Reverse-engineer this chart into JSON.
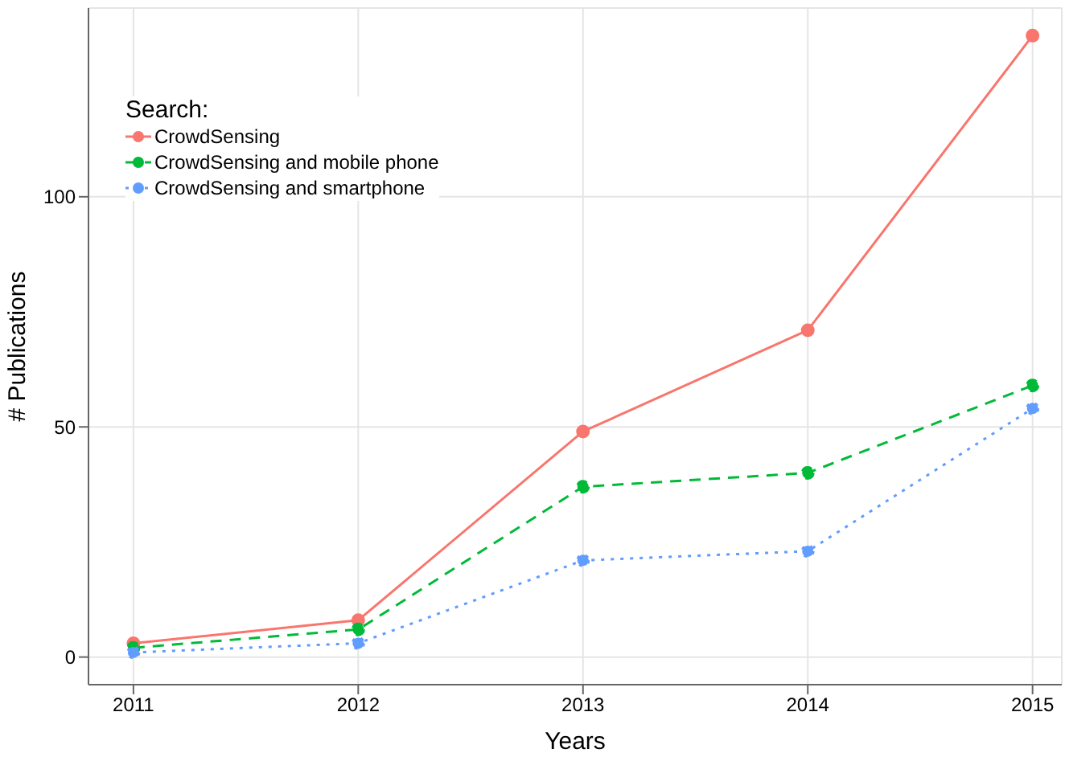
{
  "chart_data": {
    "type": "line",
    "xlabel": "Years",
    "ylabel": "# Publications",
    "legend_title": "Search:",
    "x": [
      2011,
      2012,
      2013,
      2014,
      2015
    ],
    "series": [
      {
        "name": "CrowdSensing",
        "color": "#f8766d",
        "line_style": "solid",
        "values": [
          3,
          8,
          49,
          71,
          135
        ]
      },
      {
        "name": "CrowdSensing and mobile phone",
        "color": "#00ba38",
        "line_style": "dashed",
        "values": [
          2,
          6,
          37,
          40,
          59
        ]
      },
      {
        "name": "CrowdSensing and smartphone",
        "color": "#619cff",
        "line_style": "dotted",
        "values": [
          1,
          3,
          21,
          23,
          54
        ]
      }
    ],
    "xlim": [
      2010.8,
      2015.13
    ],
    "xticks": [
      2011,
      2012,
      2013,
      2014,
      2015
    ],
    "ylim": [
      -6,
      141
    ],
    "yticks": [
      0,
      50,
      100
    ],
    "grid": true,
    "legend": "top left",
    "marker": "circle"
  }
}
